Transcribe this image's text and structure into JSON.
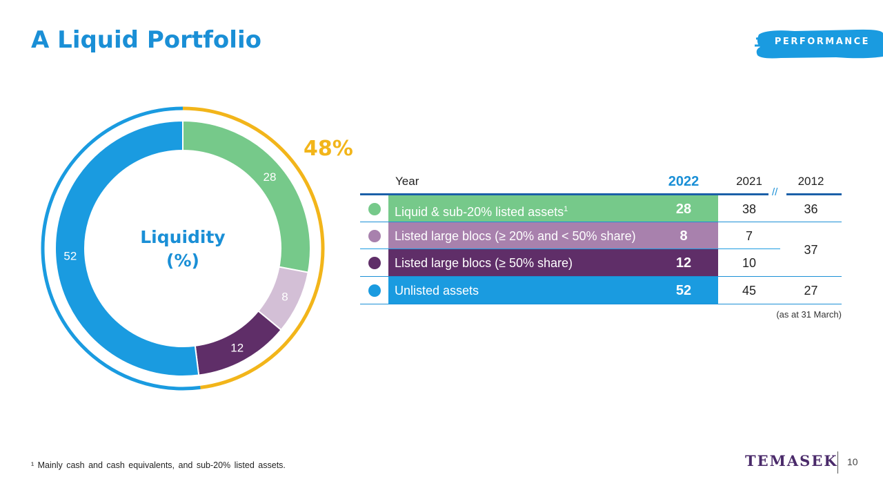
{
  "title": "A Liquid Portfolio",
  "badge": "PERFORMANCE",
  "chart_data": {
    "type": "pie",
    "center_label_line1": "Liquidity",
    "center_label_line2": "(%)",
    "categories": [
      "Liquid & sub-20% listed assets",
      "Listed large blocs (≥ 20% and < 50% share)",
      "Listed large blocs (≥ 50% share)",
      "Unlisted assets"
    ],
    "values": [
      28,
      8,
      12,
      52
    ],
    "colors": [
      "#76c98a",
      "#d3bfd6",
      "#5f2e68",
      "#1a9be0"
    ],
    "value_labels": [
      "28",
      "8",
      "12",
      "52"
    ],
    "label_colors": [
      "#ffffff",
      "#ffffff",
      "#ffffff",
      "#ffffff"
    ],
    "outer_arc_label": "48%",
    "outer_arc_color": "#f2b51a",
    "outer_arc_rest_color": "#1a9be0"
  },
  "table": {
    "headers": {
      "year": "Year",
      "y2022": "2022",
      "y2021": "2021",
      "y2012": "2012"
    },
    "rows": [
      {
        "label": "Liquid & sub-20% listed assets",
        "sup": "1",
        "v2022": "28",
        "v2021": "38",
        "v2012": "36",
        "color": "#76c98a",
        "dot": "#76c98a"
      },
      {
        "label": "Listed large blocs (≥ 20% and < 50% share)",
        "sup": "",
        "v2022": "8",
        "v2021": "7",
        "v2012": "",
        "color": "#a881ad",
        "dot": "#a881ad"
      },
      {
        "label": "Listed large blocs (≥ 50% share)",
        "sup": "",
        "v2022": "12",
        "v2021": "10",
        "v2012": "",
        "color": "#5f2e68",
        "dot": "#5f2e68"
      },
      {
        "label": "Unlisted assets",
        "sup": "",
        "v2022": "52",
        "v2021": "45",
        "v2012": "27",
        "color": "#1a9be0",
        "dot": "#1a9be0"
      }
    ],
    "merged_2012": "37",
    "break_mark": "//",
    "note": "(as at 31 March)"
  },
  "footnote": "¹ Mainly cash and cash equivalents, and sub-20% listed assets.",
  "logo": "TEMASEK",
  "page_number": "10"
}
